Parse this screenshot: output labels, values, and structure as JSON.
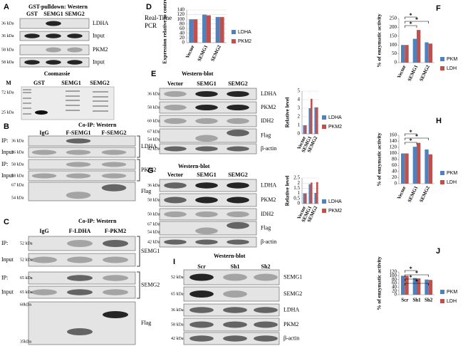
{
  "blots": {
    "A": {
      "label": "A",
      "title": "GST-pulldown:  Western",
      "lanes": [
        "GST",
        "SEMG1",
        "SEMG2"
      ],
      "rows": [
        {
          "kda": "36 kDa",
          "target": "LDHA"
        },
        {
          "kda": "36 kDa",
          "target": "Input"
        },
        {
          "kda": "58 kDa",
          "target": "PKM2"
        },
        {
          "kda": "58 kDa",
          "target": "Input"
        }
      ],
      "coomassie": {
        "title": "Coomassie",
        "lanes": [
          "M",
          "GST",
          "SEMG1",
          "SEMG2"
        ],
        "markers": [
          "72 kDa",
          "25 kDa"
        ]
      }
    },
    "B": {
      "label": "B",
      "title": "Co-IP: Western",
      "lanes": [
        "IgG",
        "F-SEMG1",
        "F-SEMG2"
      ],
      "rows": [
        {
          "prefix": "IP:",
          "kda": "36 kDa",
          "target": "LDHA"
        },
        {
          "prefix": "Input",
          "kda": "36 kDa"
        },
        {
          "prefix": "IP:",
          "kda": "58 kDa",
          "target": "PKM2"
        },
        {
          "prefix": "Input",
          "kda": "58 kDa"
        },
        {
          "kda": [
            "67 kDa",
            "54 kDa"
          ],
          "target": "Flag"
        }
      ]
    },
    "C": {
      "label": "C",
      "title": "Co-IP: Western",
      "lanes": [
        "IgG",
        "F-LDHA",
        "F-PKM2"
      ],
      "rows": [
        {
          "prefix": "IP:",
          "kda": "52 kDa",
          "target": "SEMG1"
        },
        {
          "prefix": "Input",
          "kda": "52 kDa"
        },
        {
          "prefix": "IP:",
          "kda": "65 kDa",
          "target": "SEMG2"
        },
        {
          "prefix": "Input",
          "kda": "65 kDa"
        },
        {
          "kda": [
            "60kDa",
            "35kDa"
          ],
          "target": "Flag"
        }
      ]
    },
    "E": {
      "label": "E",
      "title": "Western-blot",
      "lanes": [
        "Vector",
        "SEMG1",
        "SEMG2"
      ],
      "rows": [
        {
          "kda": "36 kDa",
          "target": "LDHA"
        },
        {
          "kda": "58 kDa",
          "target": "PKM2"
        },
        {
          "kda": "60 kDa",
          "target": "IDH2"
        },
        {
          "kda": [
            "67 kDa",
            "54 kDa"
          ],
          "target": "Flag"
        },
        {
          "kda": "42 kDa",
          "target": "β-actin"
        }
      ]
    },
    "G": {
      "label": "G",
      "title": "Western-blot",
      "lanes": [
        "Vector",
        "SEMG1",
        "SEMG2"
      ],
      "rows": [
        {
          "kda": "36 kDa",
          "target": "LDHA"
        },
        {
          "kda": "58 kDa",
          "target": "PKM2"
        },
        {
          "kda": "50 kDa",
          "target": "IDH2"
        },
        {
          "kda": [
            "67 kDa",
            "54 kDa"
          ],
          "target": "Flag"
        },
        {
          "kda": "42 kDa",
          "target": "β-actin"
        }
      ]
    },
    "I": {
      "label": "I",
      "title": "Western-blot",
      "lanes": [
        "Scr",
        "Sh1",
        "Sh2"
      ],
      "rows": [
        {
          "kda": "52 kDa",
          "target": "SEMG1"
        },
        {
          "kda": "65 kDa",
          "target": "SEMG2"
        },
        {
          "kda": "36 kDa",
          "target": "LDHA"
        },
        {
          "kda": "58 kDa",
          "target": "PKM2"
        },
        {
          "kda": "42 kDa",
          "target": "β-actin"
        }
      ]
    }
  },
  "chart_data": [
    {
      "type": "bar",
      "panel_label": "D",
      "note": "Real-Time PCR",
      "y_label": "Expression relative to control, %",
      "categories": [
        "Vector",
        "SEMG1",
        "SEMG2"
      ],
      "ylim": [
        0,
        140
      ],
      "yticks": [
        0,
        20,
        40,
        60,
        80,
        100,
        120,
        140
      ],
      "grid": true,
      "series": [
        {
          "name": "LDHA",
          "color": "#4f81bd",
          "values": [
            100,
            120,
            110
          ]
        },
        {
          "name": "PKM2",
          "color": "#c0504d",
          "values": [
            100,
            117,
            110
          ]
        }
      ]
    },
    {
      "type": "bar",
      "y_label": "Relative level",
      "categories": [
        "Vector",
        "SEMG1",
        "SEMG2"
      ],
      "ylim": [
        0,
        5
      ],
      "yticks": [
        0,
        1,
        2,
        3,
        4,
        5
      ],
      "grid": true,
      "series": [
        {
          "name": "LDHA",
          "color": "#4f81bd",
          "values": [
            1,
            3,
            3.1
          ]
        },
        {
          "name": "PKM2",
          "color": "#c0504d",
          "values": [
            1,
            4.1,
            3.1
          ]
        }
      ]
    },
    {
      "type": "bar",
      "y_label": "Relative level",
      "categories": [
        "Vector",
        "SEMG1",
        "SEMG2"
      ],
      "ylim": [
        0,
        2.5
      ],
      "yticks": [
        0,
        0.5,
        1,
        1.5,
        2,
        2.5
      ],
      "grid": true,
      "series": [
        {
          "name": "LDHA",
          "color": "#4f81bd",
          "values": [
            1,
            1.9,
            1.05
          ]
        },
        {
          "name": "PKM2",
          "color": "#c0504d",
          "values": [
            1,
            2.05,
            2.1
          ]
        }
      ]
    },
    {
      "type": "bar",
      "panel_label": "F",
      "y_label": "% of enzymatic activity",
      "categories": [
        "Vector",
        "SEMG1",
        "SEMG2"
      ],
      "ylim": [
        0,
        250
      ],
      "yticks": [
        0,
        50,
        100,
        150,
        200,
        250
      ],
      "grid": false,
      "series": [
        {
          "name": "PKM",
          "color": "#4f81bd",
          "values": [
            100,
            135,
            115
          ]
        },
        {
          "name": "LDH",
          "color": "#c0504d",
          "values": [
            100,
            185,
            108
          ]
        }
      ],
      "annotations": [
        "*",
        "*",
        "*"
      ]
    },
    {
      "type": "bar",
      "panel_label": "H",
      "y_label": "% of enzymatic activity",
      "categories": [
        "Vector",
        "SEMG1",
        "SEMG2"
      ],
      "ylim": [
        0,
        160
      ],
      "yticks": [
        0,
        20,
        40,
        60,
        80,
        100,
        120,
        140,
        160
      ],
      "grid": false,
      "series": [
        {
          "name": "PKM",
          "color": "#4f81bd",
          "values": [
            100,
            122,
            113
          ]
        },
        {
          "name": "LDH",
          "color": "#c0504d",
          "values": [
            100,
            135,
            97
          ]
        }
      ],
      "annotations": [
        "*",
        "*",
        "*"
      ]
    },
    {
      "type": "bar",
      "panel_label": "J",
      "y_label": "% of enzymatic activity",
      "categories": [
        "Scr",
        "Sh1",
        "Sh2"
      ],
      "ylim": [
        0,
        120
      ],
      "yticks": [
        0,
        20,
        40,
        60,
        80,
        100,
        120
      ],
      "grid": false,
      "series": [
        {
          "name": "PKM",
          "color": "#4f81bd",
          "values": [
            100,
            88,
            80
          ]
        },
        {
          "name": "LDH",
          "color": "#c0504d",
          "values": [
            100,
            86,
            78
          ]
        }
      ],
      "annotations": [
        "*",
        "*",
        "*",
        "*"
      ]
    }
  ]
}
